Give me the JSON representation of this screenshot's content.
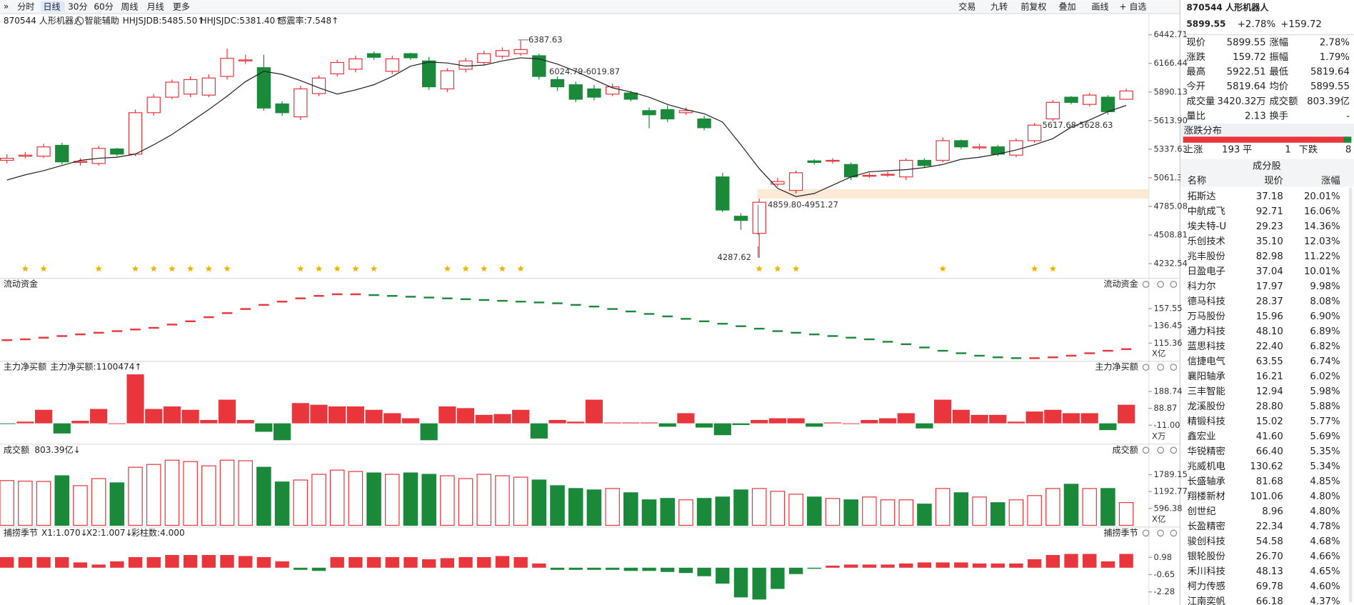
{
  "toolbar": {
    "left": [
      "分时",
      "日线",
      "30分",
      "60分",
      "周线",
      "月线",
      "更多"
    ],
    "right": [
      "交易",
      "九转",
      "前复权",
      "叠加",
      "画线",
      "+ 自选"
    ]
  },
  "legend": {
    "name": "870544 人形机器人",
    "assist": "智能辅助",
    "indicators": [
      "HHJSJDB:5485.50↑",
      "HHJSJDC:5381.40↑",
      "感震率:7.548↑"
    ]
  },
  "chart_data": [
    {
      "type": "candlestick",
      "line_color": "#222222",
      "up_color": "#e8363c",
      "down_color": "#1a8a3a",
      "open": [
        5230,
        5270,
        5270,
        5375,
        5210,
        5200,
        5340,
        5290,
        5690,
        5840,
        5870,
        5860,
        6040,
        6190,
        6125,
        5775,
        5650,
        5875,
        6065,
        6110,
        6260,
        6090,
        6260,
        6190,
        5920,
        6110,
        6175,
        6235,
        6260,
        6240,
        6010,
        5960,
        5920,
        5870,
        5880,
        5710,
        5720,
        5690,
        5630,
        5070,
        4690,
        4525,
        5000,
        4940,
        5225,
        5225,
        5190,
        5080,
        5090,
        5070,
        5230,
        5230,
        5420,
        5350,
        5360,
        5280,
        5420,
        5630,
        5840,
        5770,
        5840,
        5819.64
      ],
      "high": [
        5290,
        5310,
        5390,
        5400,
        5250,
        5370,
        5350,
        5720,
        5870,
        6010,
        6040,
        6060,
        6310,
        6250,
        6250,
        5800,
        5950,
        6050,
        6200,
        6240,
        6280,
        6240,
        6270,
        6230,
        6120,
        6220,
        6290,
        6320,
        6387.63,
        6260,
        6040,
        5990,
        5960,
        5970,
        5900,
        5740,
        5760,
        5740,
        5660,
        5110,
        4720,
        4860,
        5060,
        5130,
        5240,
        5250,
        5210,
        5110,
        5120,
        5250,
        5250,
        5450,
        5430,
        5390,
        5380,
        5440,
        5590,
        5810,
        5850,
        5880,
        5860,
        5922.51
      ],
      "low": [
        5200,
        5250,
        5250,
        5190,
        5180,
        5180,
        5270,
        5270,
        5660,
        5820,
        5840,
        5840,
        6010,
        6160,
        5710,
        5660,
        5620,
        5850,
        6040,
        6080,
        6200,
        6060,
        6200,
        5910,
        5890,
        6080,
        6150,
        6210,
        6240,
        6010,
        5900,
        5790,
        5810,
        5850,
        5800,
        5540,
        5600,
        5670,
        5520,
        4730,
        4560,
        4287.62,
        4980,
        4910,
        5190,
        5200,
        5040,
        5060,
        5070,
        5040,
        5160,
        5210,
        5340,
        5330,
        5270,
        5260,
        5400,
        5610,
        5770,
        5750,
        5670,
        5819.64
      ],
      "close": [
        5250,
        5280,
        5360,
        5215,
        5220,
        5345,
        5290,
        5690,
        5840,
        5985,
        6010,
        6025,
        6215,
        6200,
        5735,
        5690,
        5920,
        6025,
        6175,
        6210,
        6225,
        6210,
        6220,
        5940,
        6095,
        6190,
        6260,
        6290,
        6300,
        6040,
        5940,
        5820,
        5840,
        5940,
        5820,
        5670,
        5630,
        5710,
        5545,
        4750,
        4650,
        4825,
        5025,
        5110,
        5210,
        5230,
        5070,
        5085,
        5095,
        5230,
        5180,
        5420,
        5360,
        5360,
        5290,
        5420,
        5570,
        5790,
        5790,
        5860,
        5700,
        5899.55
      ],
      "line": [
        5040,
        5090,
        5130,
        5180,
        5230,
        5250,
        5260,
        5290,
        5380,
        5480,
        5600,
        5720,
        5850,
        5990,
        6090,
        6060,
        6000,
        5930,
        5870,
        5910,
        5960,
        6040,
        6140,
        6180,
        6170,
        6140,
        6150,
        6190,
        6220,
        6210,
        6160,
        6090,
        6010,
        5930,
        5890,
        5840,
        5770,
        5720,
        5680,
        5600,
        5380,
        5150,
        4960,
        4880,
        4910,
        4990,
        5070,
        5120,
        5130,
        5140,
        5160,
        5190,
        5240,
        5260,
        5290,
        5330,
        5380,
        5440,
        5550,
        5620,
        5700,
        5760
      ],
      "ylim": [
        4232.54,
        6442.71
      ],
      "yticks": [
        6442.71,
        6166.44,
        {
          "value": 5890.1,
          "label": "5890.13"
        },
        {
          "value": 5613.9,
          "label": "5613.90"
        },
        5337.63,
        5061.35,
        4785.08,
        4508.81,
        4232.54
      ],
      "annotations": [
        "6387.63",
        "6024.79-6019.87",
        "4859.80-4951.27",
        "4287.62",
        "5617.68-5628.63"
      ]
    },
    {
      "type": "dash",
      "title": "流动资金",
      "unit": "X亿",
      "color": "#1a8a3a",
      "up_color": "#e8363c",
      "values": [
        119,
        120,
        122,
        124,
        126,
        128,
        130,
        132,
        134,
        138,
        142,
        147,
        152,
        157,
        162,
        166,
        170,
        173,
        175,
        175,
        174,
        173,
        172,
        171,
        170,
        169,
        168,
        167,
        166,
        165,
        164,
        162,
        160,
        157,
        154,
        151,
        148,
        145,
        142,
        139,
        136,
        133,
        130,
        128,
        126,
        124,
        122,
        120,
        117,
        114,
        110,
        106,
        103,
        100,
        98,
        97,
        97,
        98,
        100,
        103,
        106,
        108
      ],
      "ylim": [
        96.4,
        177.6
      ],
      "yticks": [
        157.55,
        136.45,
        115.36
      ]
    },
    {
      "type": "bar",
      "title": "主力净买额",
      "subtitle": "主力净买额:1100474↑",
      "unit": "X万",
      "up_color": "#e8363c",
      "down_color": "#1a8a3a",
      "values": [
        -4,
        10,
        80,
        -60,
        15,
        85,
        0,
        290,
        85,
        100,
        80,
        20,
        140,
        20,
        -50,
        -100,
        120,
        110,
        100,
        100,
        80,
        60,
        30,
        -100,
        100,
        90,
        50,
        55,
        80,
        -90,
        20,
        10,
        140,
        5,
        5,
        5,
        -20,
        60,
        -25,
        -70,
        -10,
        20,
        30,
        30,
        -20,
        5,
        0,
        20,
        30,
        60,
        -30,
        140,
        80,
        50,
        50,
        10,
        70,
        80,
        60,
        60,
        -40,
        110
      ],
      "ylim": [
        -113,
        291
      ],
      "yticks": [
        188.74,
        88.87,
        {
          "value": -11,
          "label": "-11.00"
        }
      ]
    },
    {
      "type": "volume",
      "title": "成交额",
      "subtitle": "803.39亿↓",
      "unit": "X亿",
      "values": [
        1580,
        1560,
        1550,
        1750,
        1400,
        1650,
        1500,
        2050,
        2150,
        2300,
        2250,
        2100,
        2300,
        2280,
        2050,
        1530,
        1600,
        1800,
        1950,
        1900,
        1850,
        1800,
        1850,
        1800,
        1750,
        1650,
        1800,
        1750,
        1700,
        1600,
        1400,
        1300,
        1250,
        1300,
        1150,
        900,
        950,
        900,
        950,
        1000,
        1250,
        1300,
        1200,
        1100,
        1000,
        950,
        900,
        1000,
        900,
        900,
        750,
        1300,
        1150,
        1000,
        800,
        900,
        1050,
        1300,
        1450,
        1300,
        1300,
        803.39
      ],
      "ylim": [
        0,
        2378
      ],
      "yticks": [
        1789.15,
        1192.77,
        596.38
      ]
    },
    {
      "type": "histogram",
      "title": "捕捞季节",
      "indicators": [
        "X1:1.070↓",
        "X2:1.007↓",
        "彩柱数:4.000"
      ],
      "up_color": "#e8363c",
      "down_color": "#1a8a3a",
      "values": [
        1.0,
        1.0,
        1.0,
        1.0,
        0.5,
        0.3,
        0.6,
        1.0,
        1.0,
        1.2,
        1.2,
        1.2,
        1.2,
        1.1,
        1.0,
        0.6,
        -0.2,
        -0.3,
        1.0,
        1.0,
        1.0,
        1.0,
        1.0,
        0.8,
        0.9,
        1.0,
        1.0,
        1.1,
        1.0,
        0.4,
        -0.2,
        -0.2,
        -0.2,
        -0.2,
        -0.3,
        -0.3,
        -0.4,
        -0.5,
        -0.8,
        -1.5,
        -2.8,
        -3.0,
        -2.0,
        -0.6,
        -0.1,
        0.2,
        0.3,
        0.3,
        0.3,
        0.4,
        0.5,
        0.5,
        0.5,
        0.4,
        0.4,
        0.4,
        0.8,
        1.2,
        1.3,
        1.3,
        0.6,
        1.3
      ],
      "ylim": [
        -3.5,
        2.37
      ],
      "yticks": [
        0.98,
        -0.65,
        -2.28
      ]
    }
  ],
  "quote": {
    "title": "870544 人形机器人",
    "price": "5899.55",
    "change_pct": "+2.78%",
    "change": "+159.72",
    "rows": [
      [
        "现价",
        "5899.55",
        "涨幅",
        "2.78%"
      ],
      [
        "涨跌",
        "159.72",
        "振幅",
        "1.79%"
      ],
      [
        "最高",
        "5922.51",
        "最低",
        "5819.64"
      ],
      [
        "今开",
        "5819.64",
        "均价",
        "5899.55"
      ],
      [
        "成交量",
        "3420.32万",
        "成交额",
        "803.39亿"
      ],
      [
        "量比",
        "2.13",
        "换手",
        "-"
      ]
    ],
    "dist_title": "涨跌分布",
    "dist": [
      "上涨",
      "193",
      "平",
      "1",
      "下跌",
      "8"
    ]
  },
  "constituents": {
    "title": "成分股",
    "header": [
      "名称",
      "现价",
      "涨幅"
    ],
    "rows": [
      [
        "拓斯达",
        "37.18",
        "20.01%"
      ],
      [
        "中航成飞",
        "92.71",
        "16.06%"
      ],
      [
        "埃夫特-U",
        "29.23",
        "14.36%"
      ],
      [
        "乐创技术",
        "35.10",
        "12.03%"
      ],
      [
        "兆丰股份",
        "82.98",
        "11.22%"
      ],
      [
        "日盈电子",
        "37.04",
        "10.01%"
      ],
      [
        "科力尔",
        "17.97",
        "9.98%"
      ],
      [
        "德马科技",
        "28.37",
        "8.08%"
      ],
      [
        "万马股份",
        "15.96",
        "6.90%"
      ],
      [
        "通力科技",
        "48.10",
        "6.89%"
      ],
      [
        "蓝思科技",
        "22.40",
        "6.82%"
      ],
      [
        "信捷电气",
        "63.55",
        "6.74%"
      ],
      [
        "襄阳轴承",
        "16.21",
        "6.02%"
      ],
      [
        "三丰智能",
        "12.94",
        "5.98%"
      ],
      [
        "龙溪股份",
        "28.80",
        "5.88%"
      ],
      [
        "精锻科技",
        "15.02",
        "5.77%"
      ],
      [
        "鑫宏业",
        "41.60",
        "5.69%"
      ],
      [
        "华锐精密",
        "66.40",
        "5.35%"
      ],
      [
        "兆威机电",
        "130.62",
        "5.34%"
      ],
      [
        "长盛轴承",
        "81.68",
        "4.85%"
      ],
      [
        "翔楼新材",
        "101.06",
        "4.80%"
      ],
      [
        "创世纪",
        "8.96",
        "4.80%"
      ],
      [
        "长盈精密",
        "22.34",
        "4.78%"
      ],
      [
        "骏创科技",
        "54.58",
        "4.68%"
      ],
      [
        "银轮股份",
        "26.70",
        "4.66%"
      ],
      [
        "禾川科技",
        "48.13",
        "4.65%"
      ],
      [
        "柯力传感",
        "69.78",
        "4.60%"
      ],
      [
        "江南奕帆",
        "66.18",
        "4.37%"
      ]
    ],
    "highlight": [
      1,
      8,
      12,
      19
    ],
    "highlight_color": "#2a6fd6"
  }
}
